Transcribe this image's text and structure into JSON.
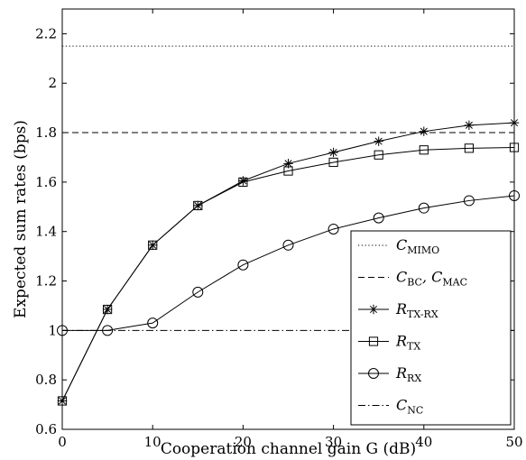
{
  "chart_data": {
    "type": "line",
    "title": "",
    "xlabel": "Cooperation channel gain G (dB)",
    "ylabel": "Expected sum rates (bps)",
    "xlim": [
      0,
      50
    ],
    "ylim": [
      0.6,
      2.3
    ],
    "xticks": [
      "0",
      "10",
      "20",
      "30",
      "40",
      "50"
    ],
    "yticks": [
      "0.6",
      "0.8",
      "1",
      "1.2",
      "1.4",
      "1.6",
      "1.8",
      "2",
      "2.2"
    ],
    "grid": false,
    "legend_position": "bottom-right",
    "series": [
      {
        "name": "C_MIMO",
        "legend_main": "C",
        "legend_sub": "MIMO",
        "style": "dotted",
        "marker": "none",
        "x": [
          0,
          50
        ],
        "y": [
          2.15,
          2.15
        ]
      },
      {
        "name": "C_BC, C_MAC",
        "legend_main": "C",
        "legend_sub": "BC",
        "legend_main2": ", C",
        "legend_sub2": "MAC",
        "style": "dashed",
        "marker": "none",
        "x": [
          0,
          50
        ],
        "y": [
          1.8,
          1.8
        ]
      },
      {
        "name": "R_TX-RX",
        "legend_main": "R",
        "legend_sub": "TX-RX",
        "style": "solid",
        "marker": "star",
        "x": [
          0,
          5,
          10,
          15,
          20,
          25,
          30,
          35,
          40,
          45,
          50
        ],
        "y": [
          0.715,
          1.085,
          1.345,
          1.505,
          1.605,
          1.675,
          1.72,
          1.765,
          1.805,
          1.83,
          1.84
        ]
      },
      {
        "name": "R_TX",
        "legend_main": "R",
        "legend_sub": "TX",
        "style": "solid",
        "marker": "square",
        "x": [
          0,
          5,
          10,
          15,
          20,
          25,
          30,
          35,
          40,
          45,
          50
        ],
        "y": [
          0.715,
          1.085,
          1.345,
          1.505,
          1.6,
          1.645,
          1.68,
          1.71,
          1.73,
          1.737,
          1.74
        ]
      },
      {
        "name": "R_RX",
        "legend_main": "R",
        "legend_sub": "RX",
        "style": "solid",
        "marker": "circle",
        "x": [
          0,
          5,
          10,
          15,
          20,
          25,
          30,
          35,
          40,
          45,
          50
        ],
        "y": [
          1.0,
          1.0,
          1.03,
          1.155,
          1.265,
          1.345,
          1.41,
          1.455,
          1.495,
          1.525,
          1.545
        ]
      },
      {
        "name": "C_NC",
        "legend_main": "C",
        "legend_sub": "NC",
        "style": "dashdot",
        "marker": "none",
        "x": [
          0,
          50
        ],
        "y": [
          1.0,
          1.0
        ]
      }
    ]
  }
}
